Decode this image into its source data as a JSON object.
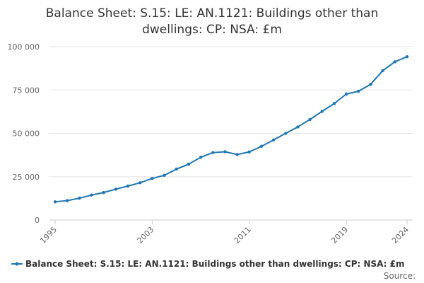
{
  "chart_data": {
    "type": "line",
    "title_lines": [
      "Balance Sheet: S.15: LE: AN.1121: Buildings other than",
      "dwellings: CP: NSA: £m"
    ],
    "xlabel": "",
    "ylabel": "",
    "xlim": [
      1995,
      2024
    ],
    "ylim": [
      0,
      100000
    ],
    "y_ticks": [
      0,
      25000,
      50000,
      75000,
      100000
    ],
    "y_tick_labels": [
      "0",
      "25 000",
      "50 000",
      "75 000",
      "100 000"
    ],
    "x_ticks": [
      1995,
      2003,
      2011,
      2019,
      2024
    ],
    "x_tick_labels": [
      "1995",
      "2003",
      "2011",
      "2019",
      "2024"
    ],
    "grid": true,
    "legend_position": "bottom",
    "series": [
      {
        "name": "Balance Sheet: S.15: LE: AN.1121: Buildings other than dwellings: CP: NSA: £m",
        "color": "#1f77b4",
        "x": [
          1995,
          1996,
          1997,
          1998,
          1999,
          2000,
          2001,
          2002,
          2003,
          2004,
          2005,
          2006,
          2007,
          2008,
          2009,
          2010,
          2011,
          2012,
          2013,
          2014,
          2015,
          2016,
          2017,
          2018,
          2019,
          2020,
          2021,
          2022,
          2023,
          2024
        ],
        "values": [
          10500,
          11200,
          12600,
          14400,
          15900,
          17800,
          19600,
          21500,
          24000,
          25800,
          29400,
          32200,
          36200,
          38900,
          39400,
          37800,
          39300,
          42500,
          46200,
          50000,
          53700,
          58000,
          62700,
          67200,
          72700,
          74300,
          78300,
          86200,
          91300,
          94200
        ]
      }
    ]
  },
  "source_label": "Source:"
}
